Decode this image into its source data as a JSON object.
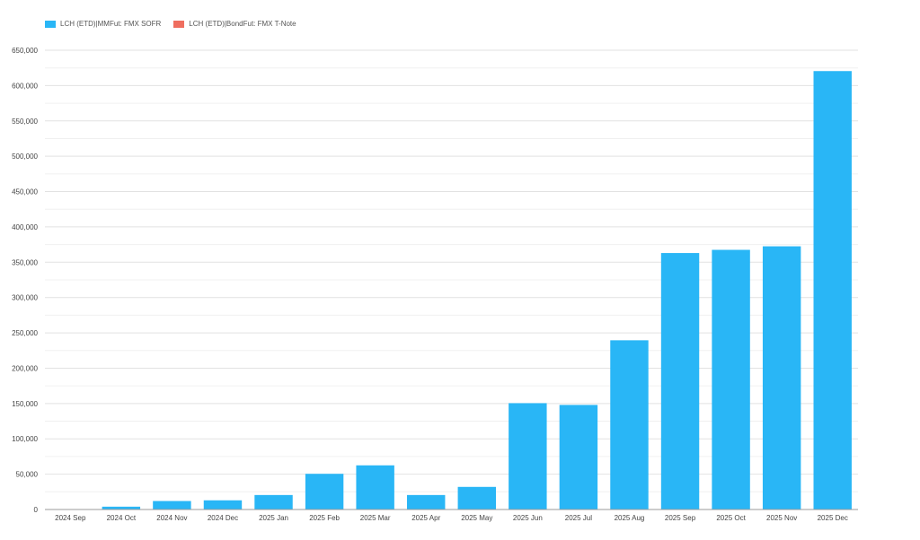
{
  "chart_data": {
    "type": "bar",
    "categories": [
      "2024 Sep",
      "2024 Oct",
      "2024 Nov",
      "2024 Dec",
      "2025 Jan",
      "2025 Feb",
      "2025 Mar",
      "2025 Apr",
      "2025 May",
      "2025 Jun",
      "2025 Jul",
      "2025 Aug",
      "2025 Sep",
      "2025 Oct",
      "2025 Nov",
      "2025 Dec"
    ],
    "series": [
      {
        "name": "LCH (ETD)|MMFut: FMX SOFR",
        "color": "#29b6f6",
        "values": [
          500,
          4000,
          12000,
          13000,
          20500,
          50500,
          62500,
          20500,
          32000,
          150500,
          148000,
          239500,
          363000,
          367500,
          372500,
          620500
        ]
      },
      {
        "name": "LCH (ETD)|BondFut: FMX T-Note",
        "color": "#ef6e5f",
        "values": [
          0,
          0,
          0,
          0,
          0,
          0,
          0,
          0,
          0,
          0,
          0,
          0,
          0,
          0,
          0,
          0
        ]
      }
    ],
    "ylim": [
      0,
      650000
    ],
    "yticks": [
      0,
      50000,
      100000,
      150000,
      200000,
      250000,
      300000,
      350000,
      400000,
      450000,
      500000,
      550000,
      600000,
      650000
    ],
    "ytick_labels": [
      "0",
      "50,000",
      "100,000",
      "150,000",
      "200,000",
      "250,000",
      "300,000",
      "350,000",
      "400,000",
      "450,000",
      "500,000",
      "550,000",
      "600,000",
      "650,000"
    ],
    "grid": true,
    "legend": "top-left"
  }
}
